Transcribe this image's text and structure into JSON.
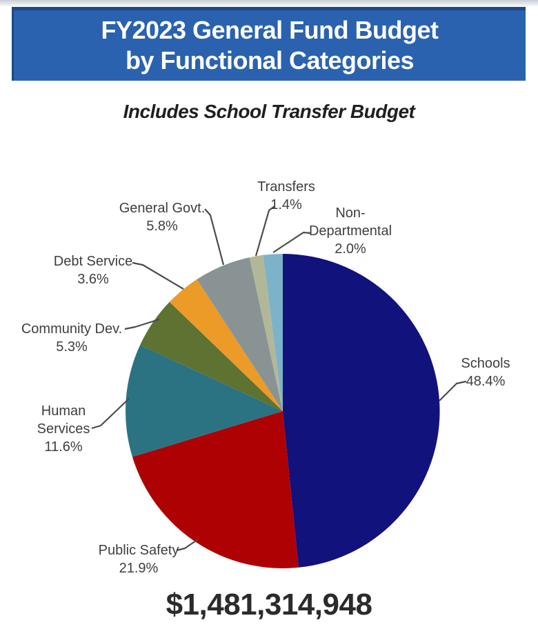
{
  "header": {
    "title_line1": "FY2023 General Fund Budget",
    "title_line2": "by Functional Categories",
    "bg_color": "#2a62b0",
    "edge_color": "#1e4886",
    "text_color": "#ffffff"
  },
  "subtitle": "Includes School Transfer Budget",
  "total_amount": "$1,481,314,948",
  "chart_data": {
    "type": "pie",
    "title": "FY2023 General Fund Budget by Functional Categories",
    "subtitle": "Includes School Transfer Budget",
    "total_label": "$1,481,314,948",
    "start_angle_deg": 0,
    "direction": "clockwise",
    "legend_position": "outside-labels-with-leader-lines",
    "slices": [
      {
        "label": "Schools",
        "label_lines": [
          "Schools"
        ],
        "pct": 48.4,
        "color": "#12127d"
      },
      {
        "label": "Public Safety",
        "label_lines": [
          "Public Safety"
        ],
        "pct": 21.9,
        "color": "#ae0103"
      },
      {
        "label": "Human Services",
        "label_lines": [
          "Human",
          "Services"
        ],
        "pct": 11.6,
        "color": "#2b7382"
      },
      {
        "label": "Community Dev.",
        "label_lines": [
          "Community Dev."
        ],
        "pct": 5.3,
        "color": "#5e7231"
      },
      {
        "label": "Debt Service",
        "label_lines": [
          "Debt Service"
        ],
        "pct": 3.6,
        "color": "#ec9a28"
      },
      {
        "label": "General Govt.",
        "label_lines": [
          "General Govt."
        ],
        "pct": 5.8,
        "color": "#8a9394"
      },
      {
        "label": "Transfers",
        "label_lines": [
          "Transfers"
        ],
        "pct": 1.4,
        "color": "#b2b897"
      },
      {
        "label": "Non-Departmental",
        "label_lines": [
          "Non-",
          "Departmental"
        ],
        "pct": 2.0,
        "color": "#7cb3c9"
      }
    ]
  }
}
